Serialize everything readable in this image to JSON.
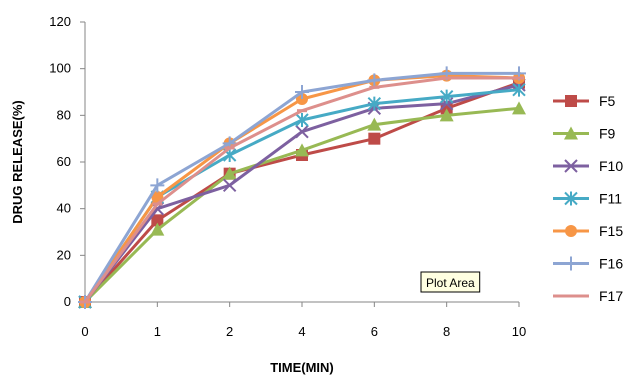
{
  "chart_data": {
    "type": "line",
    "title": "",
    "xlabel": "TIME(MIN)",
    "ylabel": "DRUG RELEASE(%)",
    "categories": [
      "0",
      "1",
      "2",
      "4",
      "6",
      "8",
      "10"
    ],
    "ylim": [
      0,
      120
    ],
    "yticks": [
      "0",
      "20",
      "40",
      "60",
      "80",
      "100",
      "120"
    ],
    "grid": false,
    "legend_position": "right",
    "tooltip": "Plot Area",
    "series": [
      {
        "name": "F5",
        "color": "#be4b48",
        "marker": "square",
        "values": [
          0,
          35,
          55,
          63,
          70,
          83,
          94
        ]
      },
      {
        "name": "F9",
        "color": "#98b954",
        "marker": "triangle",
        "values": [
          0,
          31,
          55,
          65,
          76,
          80,
          83
        ]
      },
      {
        "name": "F10",
        "color": "#7d60a0",
        "marker": "x",
        "values": [
          0,
          40,
          50,
          73,
          83,
          85,
          93
        ]
      },
      {
        "name": "F11",
        "color": "#46aac5",
        "marker": "star",
        "values": [
          0,
          45,
          63,
          78,
          85,
          88,
          91
        ]
      },
      {
        "name": "F15",
        "color": "#f79646",
        "marker": "circle",
        "values": [
          0,
          45,
          68,
          87,
          95,
          97,
          96
        ]
      },
      {
        "name": "F16",
        "color": "#8da5d3",
        "marker": "plus",
        "values": [
          0,
          50,
          68,
          90,
          95,
          98,
          98
        ]
      },
      {
        "name": "F17",
        "color": "#dd8f8c",
        "marker": "dash",
        "values": [
          0,
          42,
          66,
          82,
          92,
          96,
          96
        ]
      }
    ]
  }
}
